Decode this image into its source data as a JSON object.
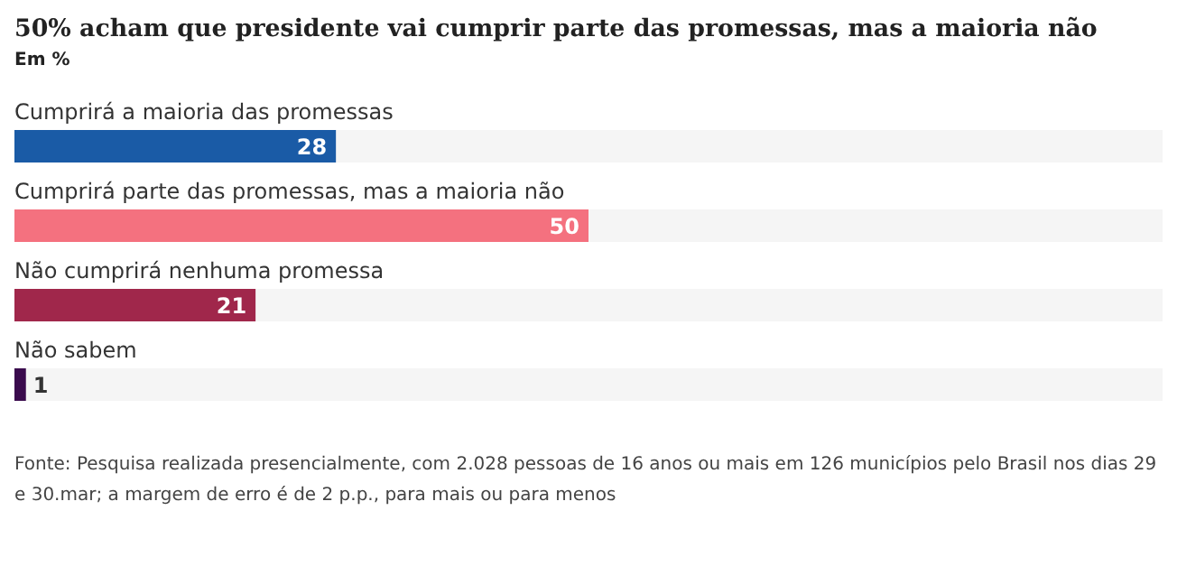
{
  "chart_data": {
    "type": "bar",
    "orientation": "horizontal",
    "title": "50% acham que presidente vai cumprir parte das promessas, mas a maioria não",
    "subtitle": "Em %",
    "categories": [
      "Cumprirá a maioria das promessas",
      "Cumprirá parte das promessas, mas a maioria não",
      "Não cumprirá nenhuma promessa",
      "Não sabem"
    ],
    "values": [
      28,
      50,
      21,
      1
    ],
    "colors": [
      "#1a5ba6",
      "#f4717f",
      "#a0274b",
      "#3a0b4d"
    ],
    "xlim": [
      0,
      100
    ],
    "data_labels": true,
    "grid": false,
    "legend": false,
    "annotations": [
      "Fonte: Pesquisa realizada presencialmente, com 2.028 pessoas de 16 anos ou mais em 126 municípios pelo Brasil nos dias 29 e 30.mar; a margem de erro é de 2 p.p., para mais ou para menos"
    ]
  }
}
